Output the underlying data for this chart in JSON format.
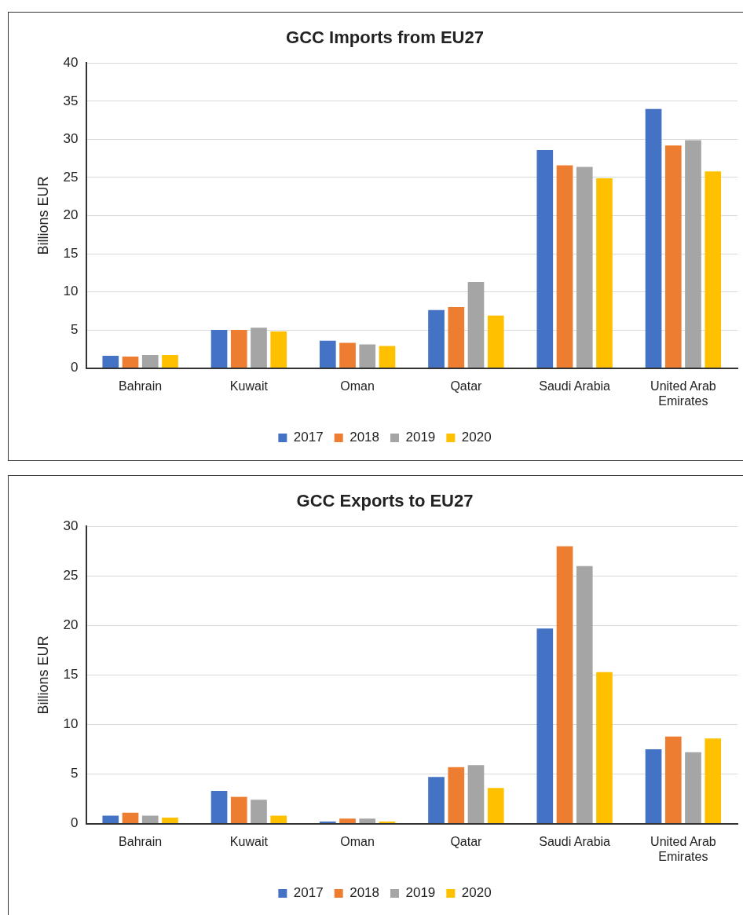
{
  "chart_data": [
    {
      "type": "bar",
      "title": "GCC Imports from EU27",
      "ylabel": "Billions EUR",
      "categories": [
        "Bahrain",
        "Kuwait",
        "Oman",
        "Qatar",
        "Saudi Arabia",
        "United Arab Emirates"
      ],
      "series": [
        {
          "name": "2017",
          "color": "#4472c4",
          "values": [
            1.6,
            5.0,
            3.6,
            7.6,
            28.6,
            34.0
          ]
        },
        {
          "name": "2018",
          "color": "#ed7d31",
          "values": [
            1.5,
            5.0,
            3.3,
            8.0,
            26.6,
            29.2
          ]
        },
        {
          "name": "2019",
          "color": "#a5a5a5",
          "values": [
            1.7,
            5.3,
            3.1,
            11.3,
            26.4,
            29.9
          ]
        },
        {
          "name": "2020",
          "color": "#ffc000",
          "values": [
            1.7,
            4.8,
            2.9,
            6.9,
            24.9,
            25.8
          ]
        }
      ],
      "ylim": [
        0,
        40
      ],
      "yticks": [
        0,
        5,
        10,
        15,
        20,
        25,
        30,
        35,
        40
      ],
      "grid": "y",
      "legend": "bottom"
    },
    {
      "type": "bar",
      "title": "GCC Exports to EU27",
      "ylabel": "Billions EUR",
      "categories": [
        "Bahrain",
        "Kuwait",
        "Oman",
        "Qatar",
        "Saudi Arabia",
        "United Arab Emirates"
      ],
      "series": [
        {
          "name": "2017",
          "color": "#4472c4",
          "values": [
            0.8,
            3.3,
            0.2,
            4.7,
            19.7,
            7.5
          ]
        },
        {
          "name": "2018",
          "color": "#ed7d31",
          "values": [
            1.1,
            2.7,
            0.5,
            5.7,
            28.0,
            8.8
          ]
        },
        {
          "name": "2019",
          "color": "#a5a5a5",
          "values": [
            0.8,
            2.4,
            0.5,
            5.9,
            26.0,
            7.2
          ]
        },
        {
          "name": "2020",
          "color": "#ffc000",
          "values": [
            0.6,
            0.8,
            0.2,
            3.6,
            15.3,
            8.6
          ]
        }
      ],
      "ylim": [
        0,
        30
      ],
      "yticks": [
        0,
        5,
        10,
        15,
        20,
        25,
        30
      ],
      "grid": "y",
      "legend": "bottom"
    }
  ]
}
